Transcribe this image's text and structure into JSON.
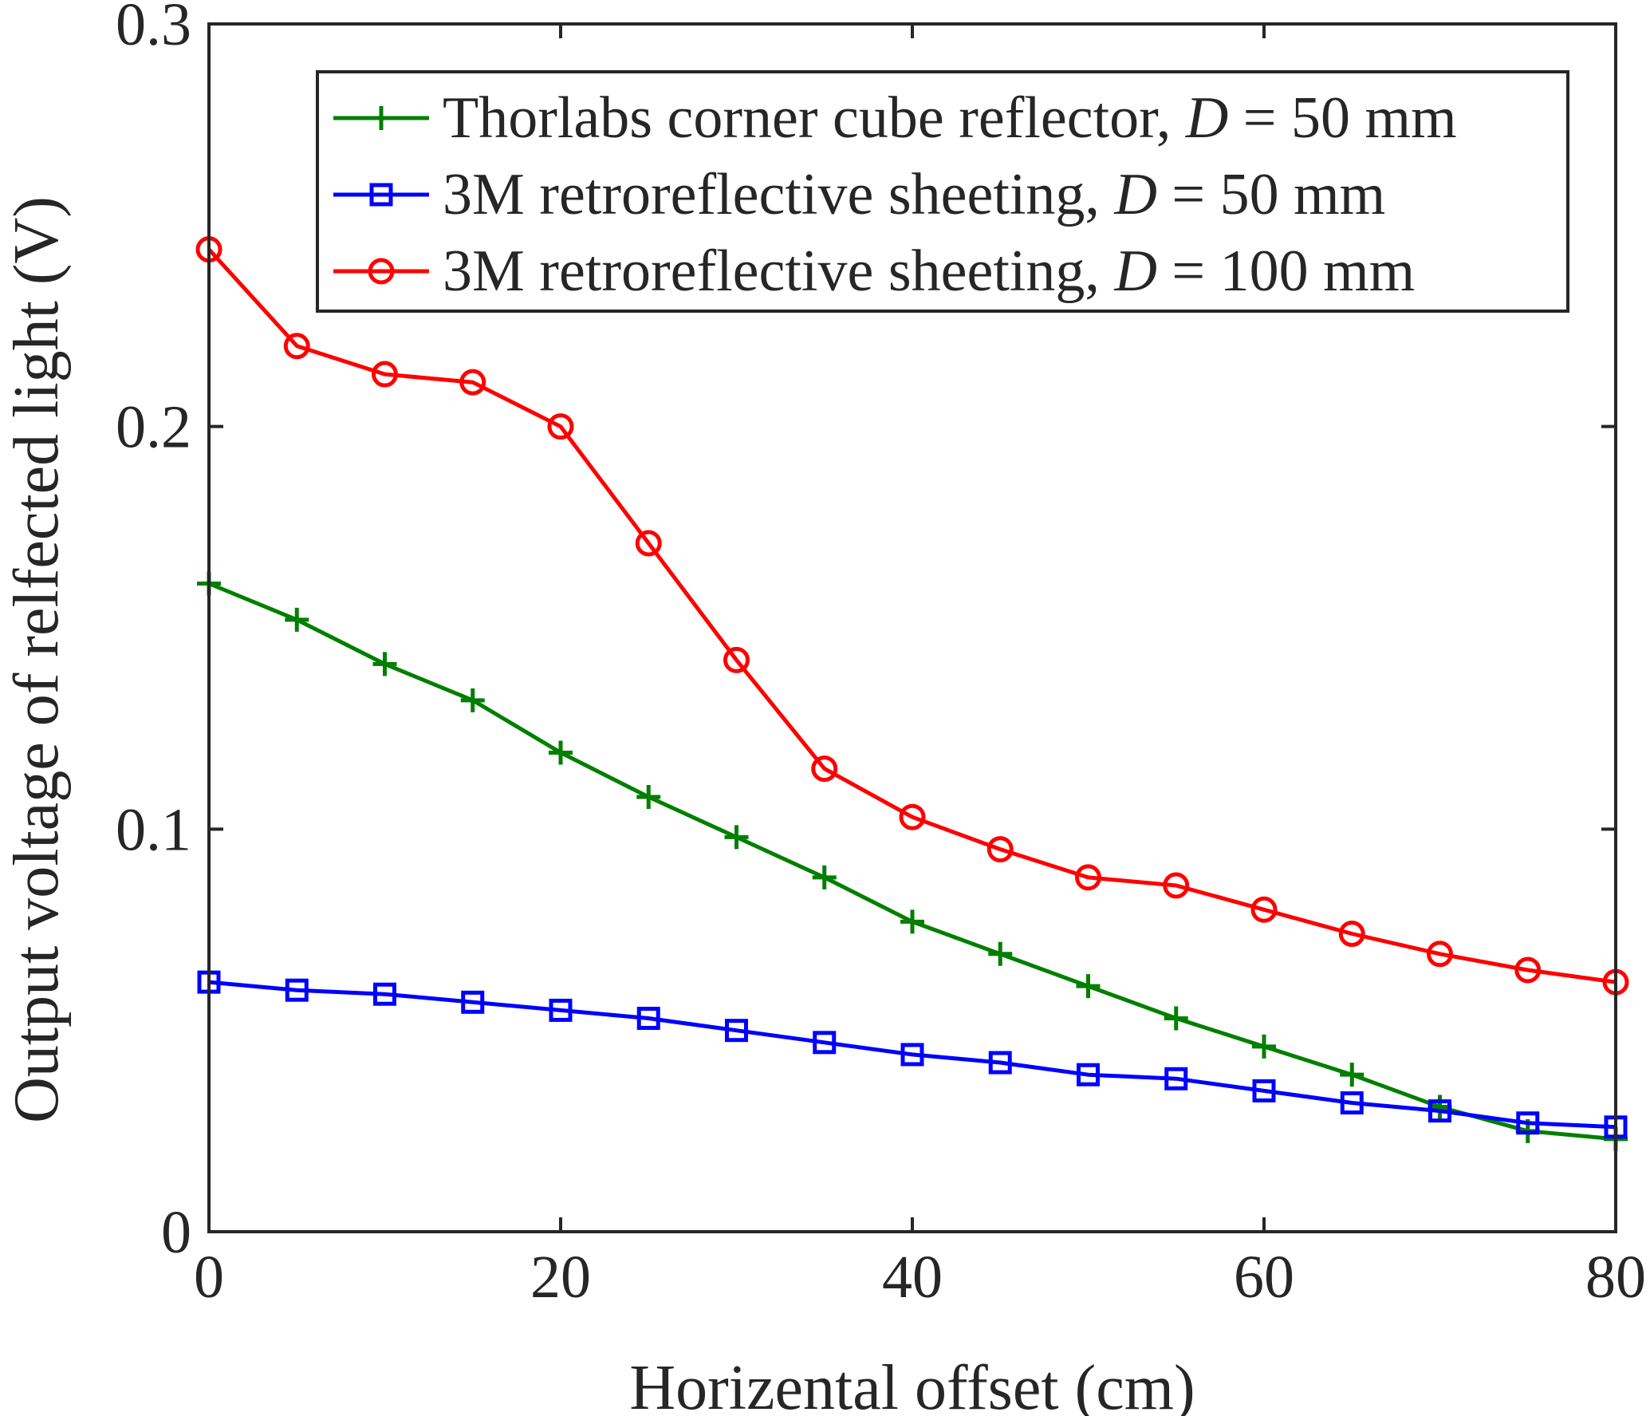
{
  "chart_data": {
    "type": "line",
    "title": "",
    "xlabel": "Horizental offset (cm)",
    "ylabel": "Output voltage of relfected light (V)",
    "xlim": [
      0,
      80
    ],
    "ylim": [
      0,
      0.3
    ],
    "xticks": [
      0,
      20,
      40,
      60,
      80
    ],
    "xtick_labels": [
      "0",
      "20",
      "40",
      "60",
      "80"
    ],
    "yticks": [
      0,
      0.1,
      0.2,
      0.3
    ],
    "ytick_labels": [
      "0",
      "0.1",
      "0.2",
      "0.3"
    ],
    "grid": false,
    "legend_position": "top-right",
    "x": [
      0,
      5,
      10,
      15,
      20,
      25,
      30,
      35,
      40,
      45,
      50,
      55,
      60,
      65,
      70,
      75,
      80
    ],
    "series": [
      {
        "name": "Thorlabs corner cube reflector",
        "legend_prefix": "Thorlabs corner cube reflector, ",
        "legend_var": "D",
        "legend_suffix": " = 50 mm",
        "color": "#007f00",
        "marker": "plus",
        "values": [
          0.161,
          0.152,
          0.141,
          0.132,
          0.119,
          0.108,
          0.098,
          0.088,
          0.077,
          0.069,
          0.061,
          0.053,
          0.046,
          0.039,
          0.031,
          0.025,
          0.023
        ]
      },
      {
        "name": "3M retroreflective sheeting 50mm",
        "legend_prefix": "3M retroreflective sheeting, ",
        "legend_var": "D",
        "legend_suffix": " = 50 mm",
        "color": "#0000ff",
        "marker": "square",
        "values": [
          0.062,
          0.06,
          0.059,
          0.057,
          0.055,
          0.053,
          0.05,
          0.047,
          0.044,
          0.042,
          0.039,
          0.038,
          0.035,
          0.032,
          0.03,
          0.027,
          0.026
        ]
      },
      {
        "name": "3M retroreflective sheeting 100mm",
        "legend_prefix": "3M retroreflective sheeting, ",
        "legend_var": "D",
        "legend_suffix": " = 100 mm",
        "color": "#ff0000",
        "marker": "circle",
        "values": [
          0.244,
          0.22,
          0.213,
          0.211,
          0.2,
          0.171,
          0.142,
          0.115,
          0.103,
          0.095,
          0.088,
          0.086,
          0.08,
          0.074,
          0.069,
          0.065,
          0.062
        ]
      }
    ]
  }
}
